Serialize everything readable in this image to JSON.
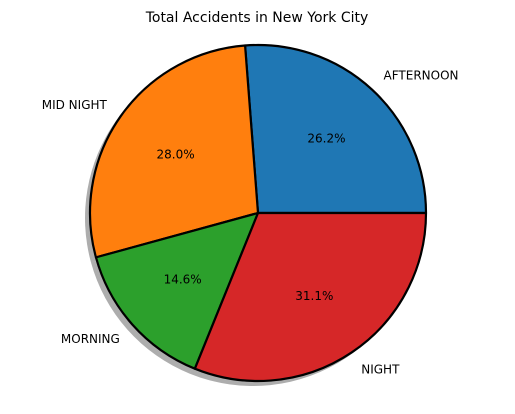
{
  "chart_data": {
    "type": "pie",
    "title": "Total Accidents in New York City",
    "slices": [
      {
        "label": "AFTERNOON",
        "value": 26.2,
        "pct_text": "26.2%",
        "color": "#1f77b4"
      },
      {
        "label": "MID NIGHT",
        "value": 28.0,
        "pct_text": "28.0%",
        "color": "#ff7f0e"
      },
      {
        "label": "MORNING",
        "value": 14.6,
        "pct_text": "14.6%",
        "color": "#2ca02c"
      },
      {
        "label": "NIGHT",
        "value": 31.1,
        "pct_text": "31.1%",
        "color": "#d62728"
      }
    ],
    "start_angle_deg": 0,
    "direction": "counterclockwise",
    "shadow": true,
    "edge_color": "#000000"
  }
}
